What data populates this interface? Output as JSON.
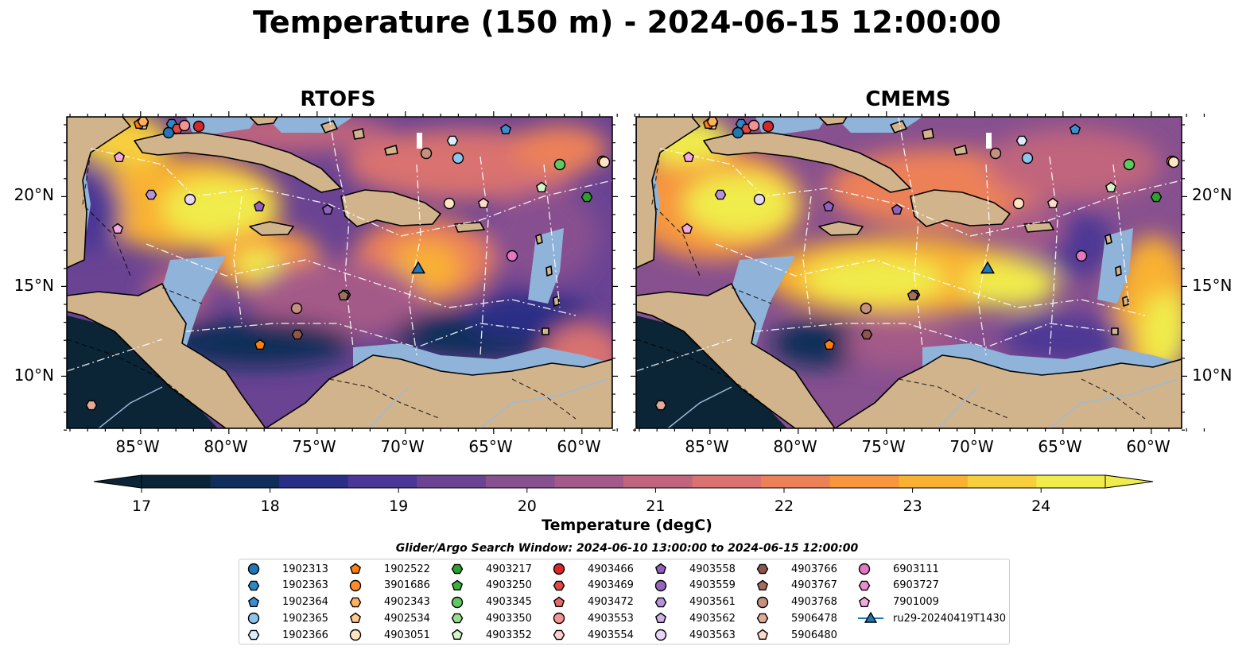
{
  "title": "Temperature (150 m) - 2024-06-15 12:00:00",
  "panels": [
    {
      "title": "RTOFS"
    },
    {
      "title": "CMEMS"
    }
  ],
  "axes": {
    "lon_labels": [
      "85°W",
      "80°W",
      "75°W",
      "70°W",
      "65°W",
      "60°W"
    ],
    "lat_labels": [
      "20°N",
      "15°N",
      "10°N"
    ]
  },
  "colorbar": {
    "label": "Temperature (degC)",
    "ticks": [
      "17",
      "18",
      "19",
      "20",
      "21",
      "22",
      "23",
      "24"
    ],
    "colors": [
      "#0b2436",
      "#112d59",
      "#2a2e86",
      "#4b3795",
      "#6a4393",
      "#87508f",
      "#a45a88",
      "#c0657d",
      "#d97270",
      "#ec8158",
      "#f7963f",
      "#f9b133",
      "#f7cf3d",
      "#f0ec4c"
    ]
  },
  "search_window": "Glider/Argo Search Window: 2024-06-10 13:00:00 to 2024-06-15 12:00:00",
  "legend": [
    {
      "label": "1902313",
      "marker": "circle",
      "color": "#1f77b4"
    },
    {
      "label": "1902363",
      "marker": "hexagon",
      "color": "#2f87c4"
    },
    {
      "label": "1902364",
      "marker": "pentagon",
      "color": "#3b8fd0"
    },
    {
      "label": "1902365",
      "marker": "circle",
      "color": "#8dc4ea"
    },
    {
      "label": "1902366",
      "marker": "hexagon",
      "color": "#dceefa"
    },
    {
      "label": "1902522",
      "marker": "pentagon",
      "color": "#ff7f0e"
    },
    {
      "label": "3901686",
      "marker": "circle",
      "color": "#ff8c28"
    },
    {
      "label": "4902343",
      "marker": "hexagon",
      "color": "#ffb15e"
    },
    {
      "label": "4902534",
      "marker": "pentagon",
      "color": "#ffc98f"
    },
    {
      "label": "4903051",
      "marker": "circle",
      "color": "#ffe3c2"
    },
    {
      "label": "4903217",
      "marker": "hexagon",
      "color": "#2ca02c"
    },
    {
      "label": "4903250",
      "marker": "pentagon",
      "color": "#3cb03c"
    },
    {
      "label": "4903345",
      "marker": "circle",
      "color": "#5fc95f"
    },
    {
      "label": "4903350",
      "marker": "hexagon",
      "color": "#98df8a"
    },
    {
      "label": "4903352",
      "marker": "pentagon",
      "color": "#d5f5c8"
    },
    {
      "label": "4903466",
      "marker": "circle",
      "color": "#d62728"
    },
    {
      "label": "4903469",
      "marker": "hexagon",
      "color": "#e04848"
    },
    {
      "label": "4903472",
      "marker": "pentagon",
      "color": "#ea6a6a"
    },
    {
      "label": "4903553",
      "marker": "circle",
      "color": "#f39494"
    },
    {
      "label": "4903554",
      "marker": "hexagon",
      "color": "#fcd0d0"
    },
    {
      "label": "4903558",
      "marker": "pentagon",
      "color": "#8e62be"
    },
    {
      "label": "4903559",
      "marker": "circle",
      "color": "#9467bd"
    },
    {
      "label": "4903561",
      "marker": "hexagon",
      "color": "#b792dc"
    },
    {
      "label": "4903562",
      "marker": "pentagon",
      "color": "#cfb2ec"
    },
    {
      "label": "4903563",
      "marker": "circle",
      "color": "#e7d6f7"
    },
    {
      "label": "4903766",
      "marker": "hexagon",
      "color": "#8c564b"
    },
    {
      "label": "4903767",
      "marker": "pentagon",
      "color": "#a0705f"
    },
    {
      "label": "4903768",
      "marker": "circle",
      "color": "#c5907f"
    },
    {
      "label": "5906478",
      "marker": "hexagon",
      "color": "#e3aa98"
    },
    {
      "label": "5906480",
      "marker": "pentagon",
      "color": "#fcd9cb"
    },
    {
      "label": "6903111",
      "marker": "circle",
      "color": "#e377c2"
    },
    {
      "label": "6903727",
      "marker": "hexagon",
      "color": "#ea8ed0"
    },
    {
      "label": "7901009",
      "marker": "pentagon",
      "color": "#f2a9de"
    },
    {
      "label": "ru29-20240419T1430",
      "marker": "triangle-line",
      "color": "#1f77b4"
    }
  ],
  "colors": {
    "land": "#d2b48c",
    "shelf": "#8fb3d9",
    "deep": "#0b2436"
  }
}
